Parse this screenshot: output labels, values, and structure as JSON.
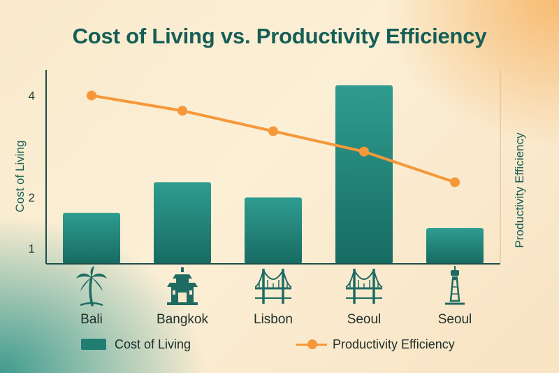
{
  "chart_data": {
    "type": "bar",
    "title": "Cost of Living vs. Productivity Efficiency",
    "categories": [
      "Bali",
      "Bangkok",
      "Lisbon",
      "Seoul",
      "Seoul"
    ],
    "category_icons": [
      "palm-tree-icon",
      "temple-icon",
      "bridge-icon",
      "bridge-icon",
      "tower-icon"
    ],
    "series": [
      {
        "name": "Cost of Living",
        "type": "bar",
        "axis": "left",
        "color": "#1f7d72",
        "values": [
          1.7,
          2.3,
          2.0,
          4.2,
          1.4
        ]
      },
      {
        "name": "Productivity Efficiency",
        "type": "line",
        "axis": "right",
        "color": "#f5983a",
        "values": [
          4.0,
          3.7,
          3.3,
          2.9,
          2.3
        ]
      }
    ],
    "ylabel": "Cost of Living",
    "y2label": "Productivity Efficiency",
    "yticks": [
      1,
      2,
      4
    ],
    "ylim": [
      0.7,
      4.5
    ],
    "y2lim": [
      0.7,
      4.5
    ],
    "grid": false,
    "legend_position": "bottom"
  }
}
